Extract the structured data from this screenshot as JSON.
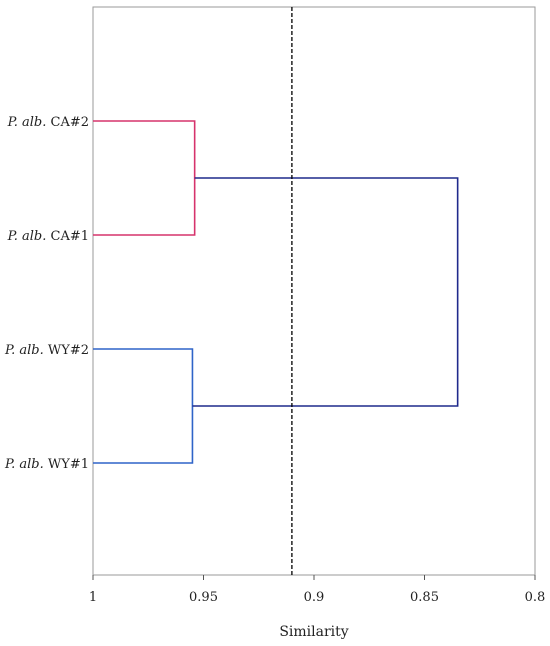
{
  "chart_data": {
    "type": "dendrogram",
    "title": "",
    "xlabel": "Similarity",
    "ylabel": "",
    "xlim": [
      1,
      0.8
    ],
    "x_reversed": true,
    "x_ticks": [
      1,
      0.95,
      0.9,
      0.85,
      0.8
    ],
    "x_tick_labels": [
      "1",
      "0.95",
      "0.9",
      "0.85",
      "0.8"
    ],
    "grid": false,
    "cutoff_line": {
      "similarity": 0.91,
      "style": "dashed",
      "color": "#000000"
    },
    "leaves": [
      {
        "id": "CA2",
        "species": "P. alb.",
        "sample": "CA#2"
      },
      {
        "id": "CA1",
        "species": "P. alb.",
        "sample": "CA#1"
      },
      {
        "id": "WY2",
        "species": "P. alb.",
        "sample": "WY#2"
      },
      {
        "id": "WY1",
        "species": "P. alb.",
        "sample": "WY#1"
      }
    ],
    "merges": [
      {
        "id": "CA",
        "children": [
          "CA2",
          "CA1"
        ],
        "similarity": 0.954,
        "color": "#d6336c"
      },
      {
        "id": "WY",
        "children": [
          "WY2",
          "WY1"
        ],
        "similarity": 0.955,
        "color": "#2f64c8"
      },
      {
        "id": "ALL",
        "children": [
          "CA",
          "WY"
        ],
        "similarity": 0.835,
        "color": "#1f2a8c"
      }
    ]
  }
}
